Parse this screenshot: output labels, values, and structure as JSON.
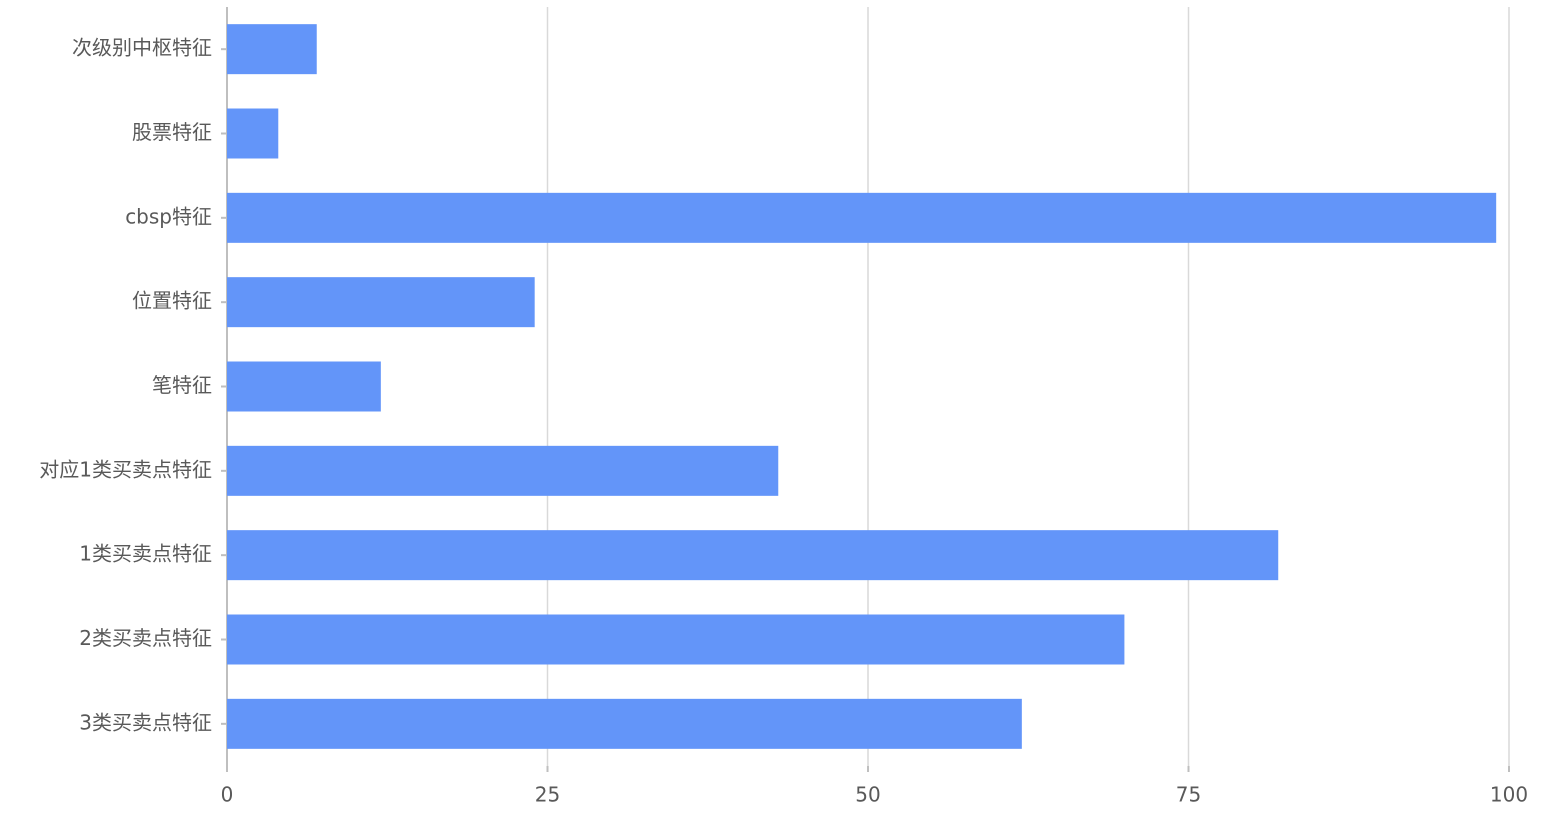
{
  "chart_data": {
    "type": "bar",
    "orientation": "horizontal",
    "categories": [
      "次级别中枢特征",
      "股票特征",
      "cbsp特征",
      "位置特征",
      "笔特征",
      "对应1类买卖点特征",
      "1类买卖点特征",
      "2类买卖点特征",
      "3类买卖点特征"
    ],
    "values": [
      7,
      4,
      99,
      24,
      12,
      43,
      82,
      70,
      62
    ],
    "color": "#6395f9",
    "xlim": [
      0,
      100
    ],
    "xticks": [
      0,
      25,
      50,
      75,
      100
    ],
    "grid": true
  }
}
